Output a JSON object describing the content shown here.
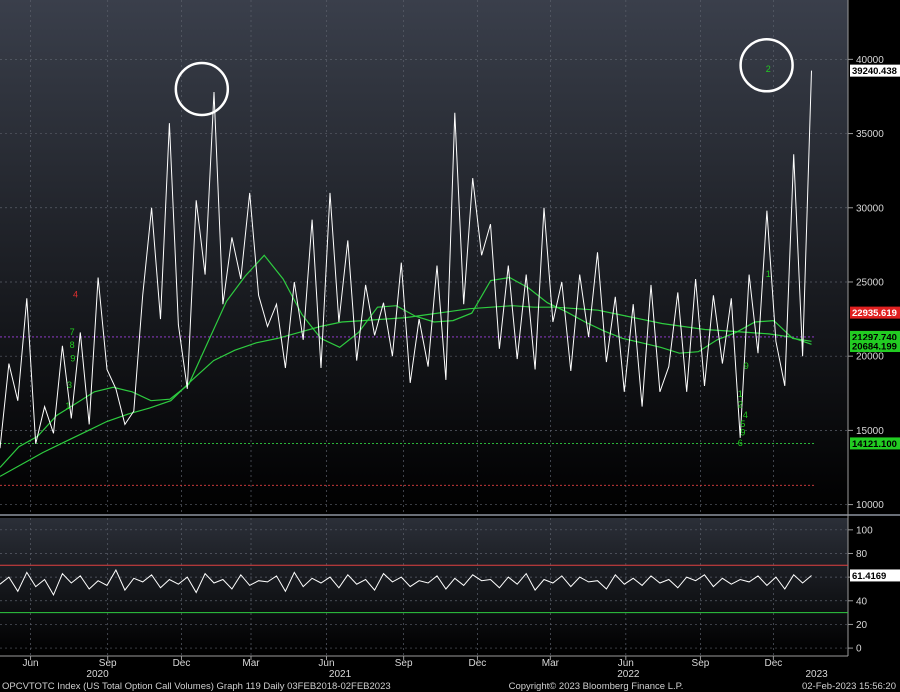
{
  "chart_data": [
    {
      "type": "line",
      "y_ticks": [
        10000,
        15000,
        20000,
        25000,
        30000,
        35000,
        40000
      ],
      "ylim": [
        9500,
        44000
      ],
      "x_tick_labels": [
        "Jun",
        "Sep",
        "Dec",
        "Mar",
        "Jun",
        "Sep",
        "Dec",
        "Mar",
        "Jun",
        "Sep",
        "Dec"
      ],
      "year_labels": [
        "2020",
        "2021",
        "2022",
        "2023"
      ],
      "grid": true,
      "series": [
        {
          "values": [
            13800,
            19500,
            17000,
            23900,
            14100,
            16600,
            14800,
            20700,
            15800,
            21600,
            15400,
            25300,
            19100,
            17800,
            15400,
            16300,
            24100,
            30000,
            22500,
            35700,
            22100,
            17800,
            30500,
            25500,
            37800,
            23500,
            28000,
            25200,
            31000,
            24100,
            22000,
            23500,
            19200,
            25000,
            21100,
            29200,
            19200,
            31000,
            22300,
            27800,
            19700,
            24800,
            21400,
            23600,
            20000,
            26300,
            18200,
            22500,
            19300,
            26100,
            18400,
            36400,
            23500,
            32000,
            26800,
            28900,
            20500,
            26100,
            19800,
            25500,
            19100,
            30000,
            22300,
            25000,
            19000,
            25500,
            21300,
            27000,
            19600,
            24000,
            17600,
            23500,
            16600,
            24800,
            17600,
            19300,
            24300,
            17600,
            25200,
            18000,
            24100,
            19500,
            23900,
            14500,
            25500,
            20200,
            29800,
            21000,
            18000,
            33600,
            20000,
            39240
          ]
        },
        {
          "values": [
            12500,
            13900,
            14600,
            16000,
            16800,
            17600,
            17900,
            17600,
            17000,
            17100,
            18100,
            20900,
            23700,
            25400,
            26800,
            25200,
            22800,
            21200,
            20600,
            21600,
            23300,
            23400,
            22700,
            22300,
            22400,
            22900,
            25100,
            25300,
            24600,
            23600,
            23000,
            22300,
            21700,
            21200,
            20900,
            20600,
            20200,
            20300,
            21100,
            21600,
            22300,
            22400,
            21200,
            21000
          ]
        },
        {
          "values": [
            11900,
            12700,
            13500,
            14200,
            14900,
            15600,
            16100,
            16500,
            17000,
            18400,
            19700,
            20400,
            20900,
            21200,
            21600,
            22000,
            22300,
            22400,
            22500,
            22600,
            22800,
            23000,
            23200,
            23300,
            23400,
            23300,
            23300,
            23200,
            23100,
            22800,
            22500,
            22200,
            22000,
            21800,
            21700,
            21600,
            21500,
            21300,
            20800
          ]
        }
      ],
      "horizontal_lines": [
        {
          "y": 14121.1,
          "color": "#2ecc40"
        },
        {
          "y": 11300,
          "color": "#e04040"
        },
        {
          "y": 21297.74,
          "color": "#a040e0"
        }
      ],
      "price_tags": [
        {
          "text": "39240.438",
          "y": 39240.438,
          "bg": "#ffffff",
          "fg": "#000000"
        },
        {
          "text": "22935.619",
          "y": 22935.619,
          "bg": "#e02020",
          "fg": "#ffffff"
        },
        {
          "text": "21297.740",
          "y": 21297.74,
          "bg": "#22cc22",
          "fg": "#000000"
        },
        {
          "text": "20684.199",
          "y": 20684.199,
          "bg": "#22cc22",
          "fg": "#000000"
        },
        {
          "text": "14121.100",
          "y": 14121.1,
          "bg": "#22cc22",
          "fg": "#000000"
        }
      ],
      "td_markers": [
        {
          "text": "4",
          "color": "#e03030",
          "x": 0.089,
          "y": 24100
        },
        {
          "text": "7",
          "color": "#22cc22",
          "x": 0.085,
          "y": 21600
        },
        {
          "text": "8",
          "color": "#22cc22",
          "x": 0.085,
          "y": 20700
        },
        {
          "text": "9",
          "color": "#22cc22",
          "x": 0.086,
          "y": 19800
        },
        {
          "text": "3",
          "color": "#22cc22",
          "x": 0.082,
          "y": 18000
        },
        {
          "text": "1",
          "color": "#22cc22",
          "x": 0.08,
          "y": 16600
        },
        {
          "text": "2",
          "color": "#22cc22",
          "x": 0.906,
          "y": 39300
        },
        {
          "text": "1",
          "color": "#22cc22",
          "x": 0.906,
          "y": 25500
        },
        {
          "text": "9",
          "color": "#22cc22",
          "x": 0.88,
          "y": 19300
        },
        {
          "text": "1",
          "color": "#22cc22",
          "x": 0.873,
          "y": 17400
        },
        {
          "text": "2",
          "color": "#22cc22",
          "x": 0.873,
          "y": 16700
        },
        {
          "text": "4",
          "color": "#22cc22",
          "x": 0.879,
          "y": 16000
        },
        {
          "text": "5",
          "color": "#22cc22",
          "x": 0.876,
          "y": 15400
        },
        {
          "text": "9",
          "color": "#22cc22",
          "x": 0.876,
          "y": 14800
        },
        {
          "text": "6",
          "color": "#22cc22",
          "x": 0.873,
          "y": 14100
        }
      ],
      "highlight_circles": [
        {
          "x": 0.238,
          "y": 38000
        },
        {
          "x": 0.904,
          "y": 39600
        }
      ]
    },
    {
      "type": "line",
      "y_ticks": [
        0,
        20,
        40,
        60,
        80,
        100
      ],
      "ylim": [
        -5,
        110
      ],
      "series": [
        {
          "values": [
            54,
            60,
            48,
            64,
            52,
            58,
            45,
            63,
            55,
            61,
            50,
            57,
            53,
            66,
            49,
            59,
            56,
            62,
            51,
            58,
            54,
            60,
            47,
            63,
            55,
            58,
            50,
            62,
            53,
            57,
            56,
            61,
            48,
            64,
            52,
            59,
            55,
            60,
            51,
            62,
            54,
            58,
            49,
            63,
            56,
            60,
            52,
            57,
            55,
            61,
            50,
            59,
            53,
            62,
            57,
            58,
            51,
            60,
            54,
            63,
            49,
            58,
            55,
            61,
            52,
            60,
            56,
            57,
            50,
            62,
            54,
            59,
            53,
            61,
            55,
            58,
            51,
            60,
            57,
            62,
            52,
            59,
            54,
            58,
            56,
            61,
            53,
            60,
            50,
            62,
            55,
            61.4169
          ]
        }
      ],
      "horizontal_lines": [
        {
          "y": 70,
          "color": "#e04040"
        },
        {
          "y": 30,
          "color": "#2ecc40"
        }
      ],
      "price_tags": [
        {
          "text": "61.4169",
          "y": 61.4169,
          "bg": "#ffffff",
          "fg": "#000000"
        }
      ]
    }
  ],
  "footer": {
    "left": "OPCVTOTC Index (US Total Option Call Volumes) Graph 119  Daily 03FEB2018-02FEB2023",
    "center": "Copyright© 2023 Bloomberg Finance L.P.",
    "right": "02-Feb-2023 15:56:20"
  },
  "colors": {
    "price": "#ffffff",
    "ma_short": "#2ecc40",
    "ma_long": "#2ecc40",
    "grid": "#5a5f6a",
    "background_top": "#3a3f4b",
    "background_bottom": "#000000"
  }
}
